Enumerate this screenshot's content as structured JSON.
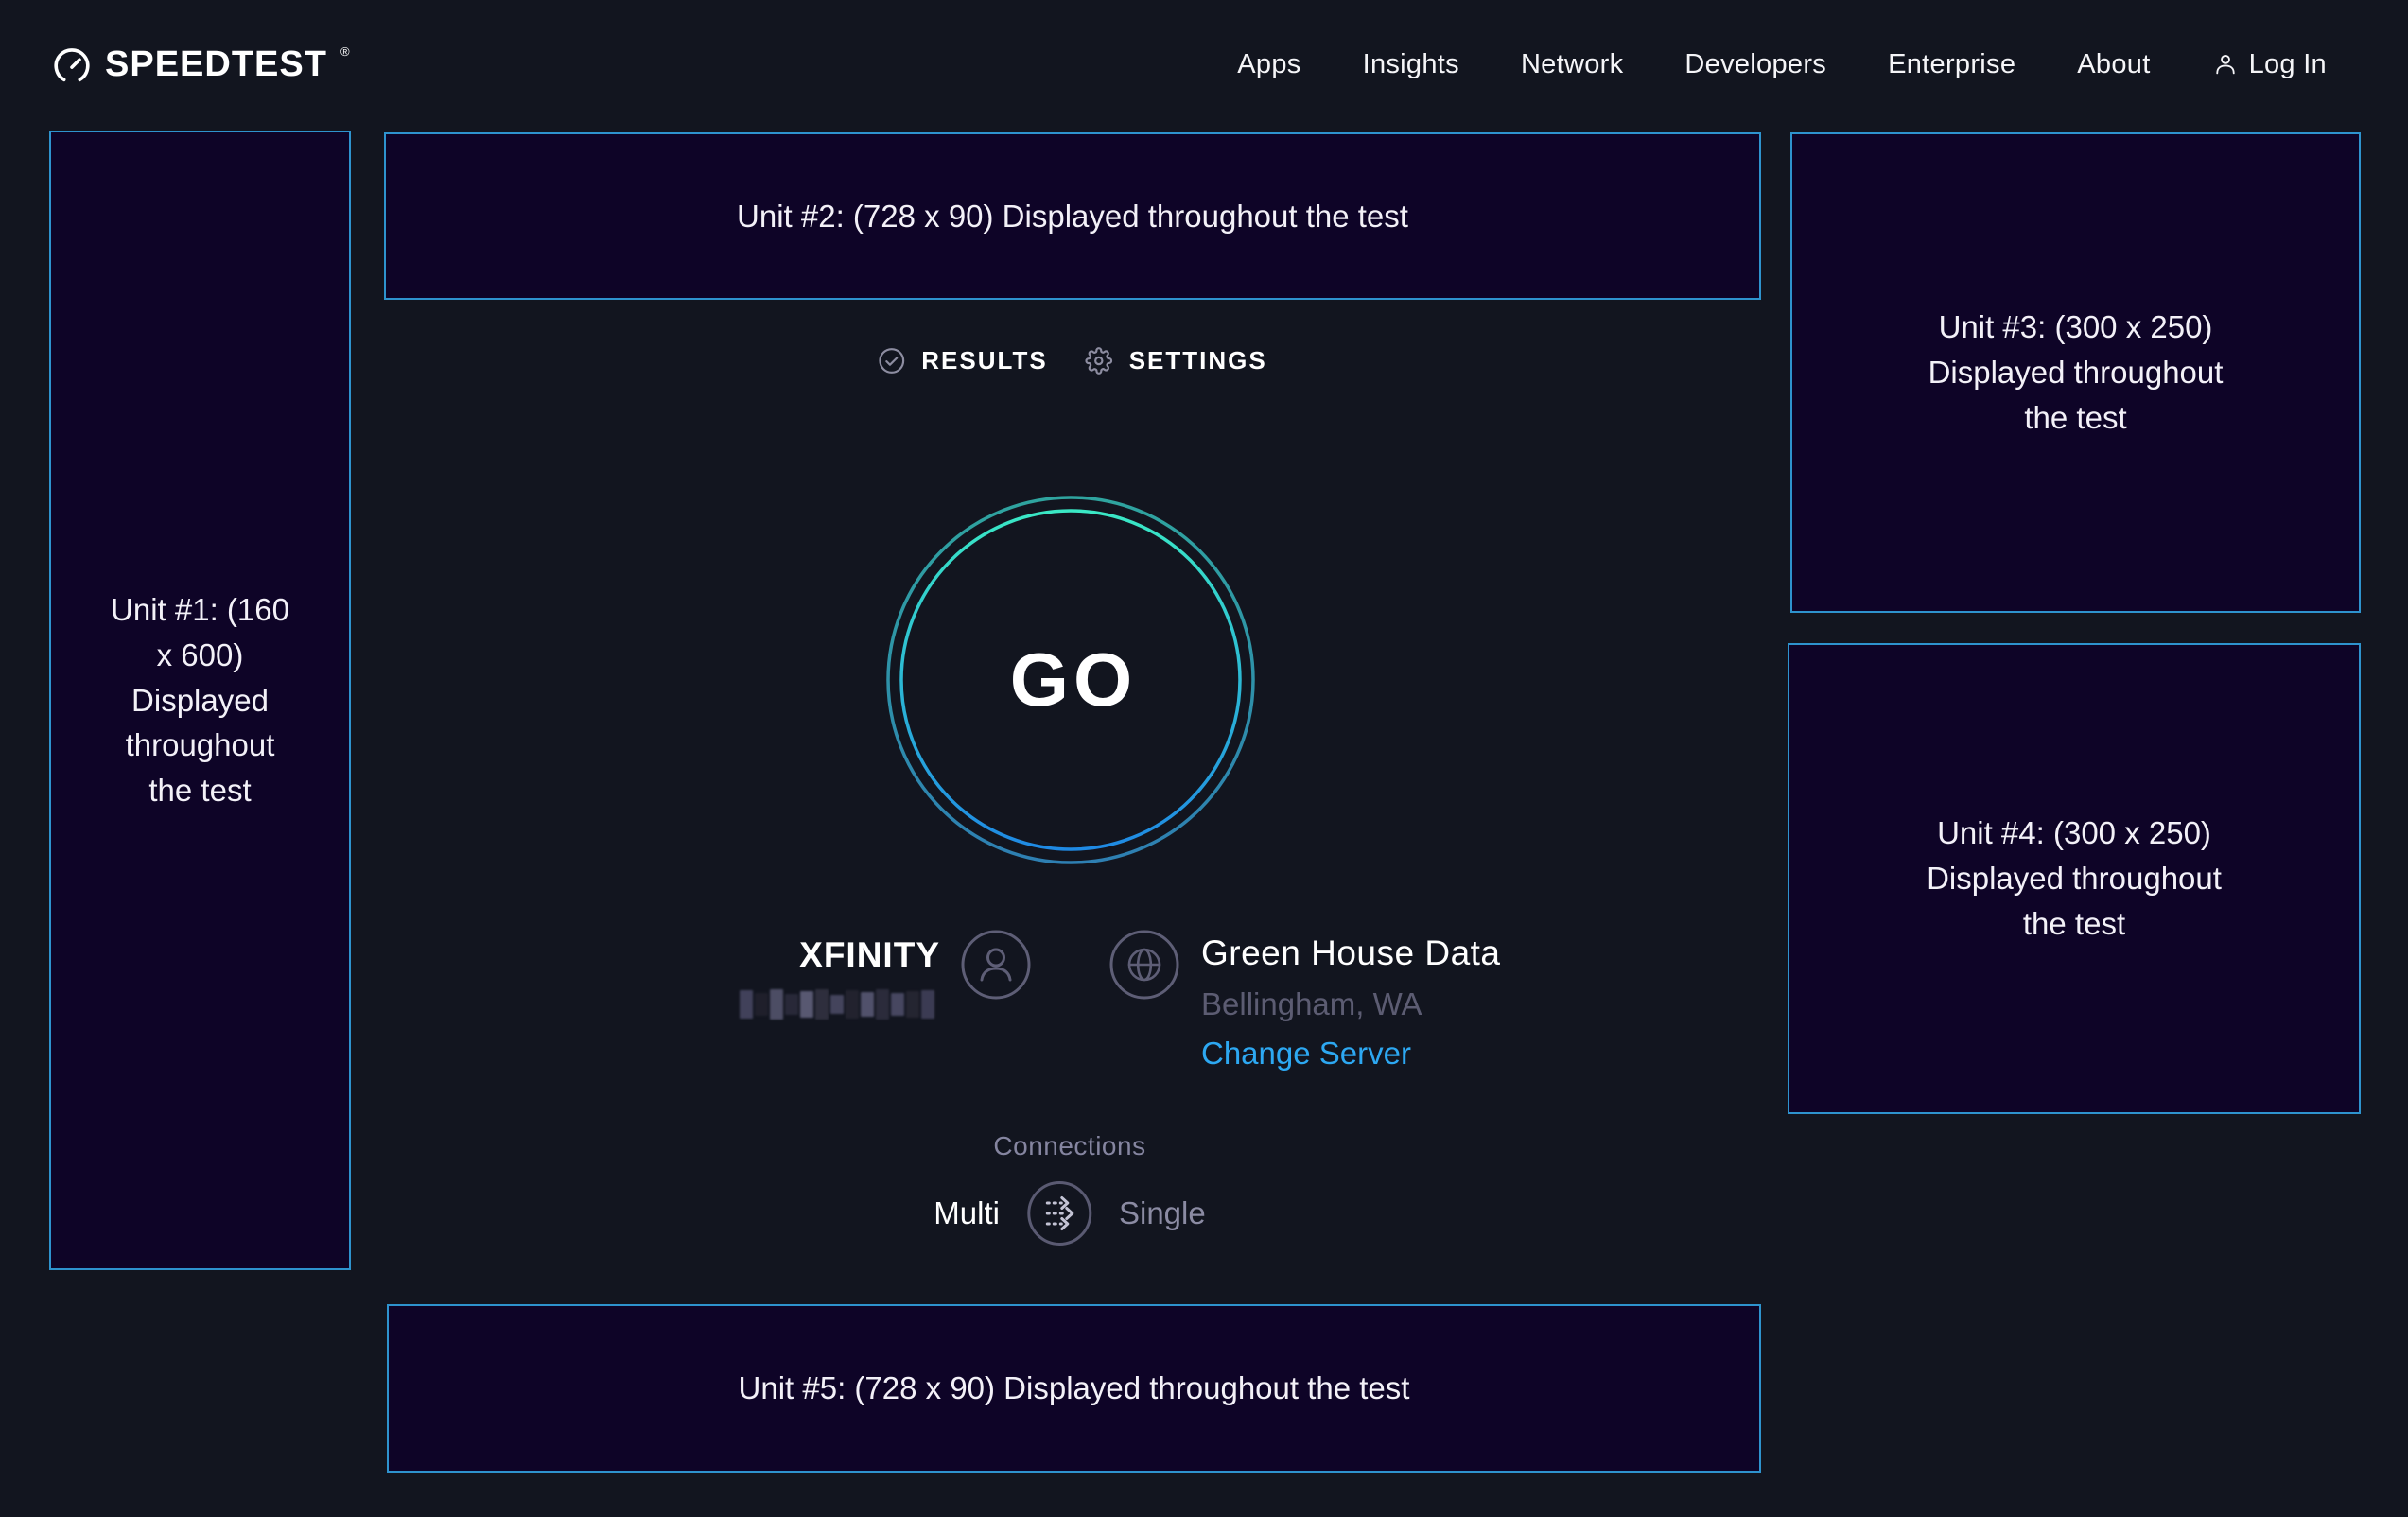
{
  "header": {
    "brand": {
      "name": "SPEEDTEST",
      "mark": "®"
    },
    "nav_items": [
      "Apps",
      "Insights",
      "Network",
      "Developers",
      "Enterprise",
      "About"
    ],
    "login_label": "Log In"
  },
  "ad_units": {
    "unit1": "Unit #1: (160 x 600) Displayed throughout the test",
    "unit2": "Unit #2: (728 x 90) Displayed throughout the test",
    "unit3": "Unit #3: (300 x 250) Displayed throughout the test",
    "unit4": "Unit #4: (300 x 250) Displayed throughout the test",
    "unit5": "Unit #5: (728 x 90) Displayed throughout the test"
  },
  "tabs": {
    "results": "RESULTS",
    "settings": "SETTINGS"
  },
  "go_button_label": "GO",
  "isp": {
    "name": "XFINITY",
    "ip_redacted": true
  },
  "server": {
    "name": "Green House Data",
    "location": "Bellingham, WA",
    "change_action": "Change Server"
  },
  "connections": {
    "label": "Connections",
    "mode_multi": "Multi",
    "mode_single": "Single",
    "selected_mode": "Multi"
  },
  "colors": {
    "page_bg": "#12151f",
    "ad_bg": "#0e0427",
    "ad_border": "#2e93ce",
    "link_blue": "#2da8f2",
    "ring_outer_top": "#2fa49f",
    "ring_outer_bottom": "#2e7fb2",
    "ring_inner_top": "#3ae8c5",
    "ring_inner_bottom": "#1f8ae4"
  }
}
